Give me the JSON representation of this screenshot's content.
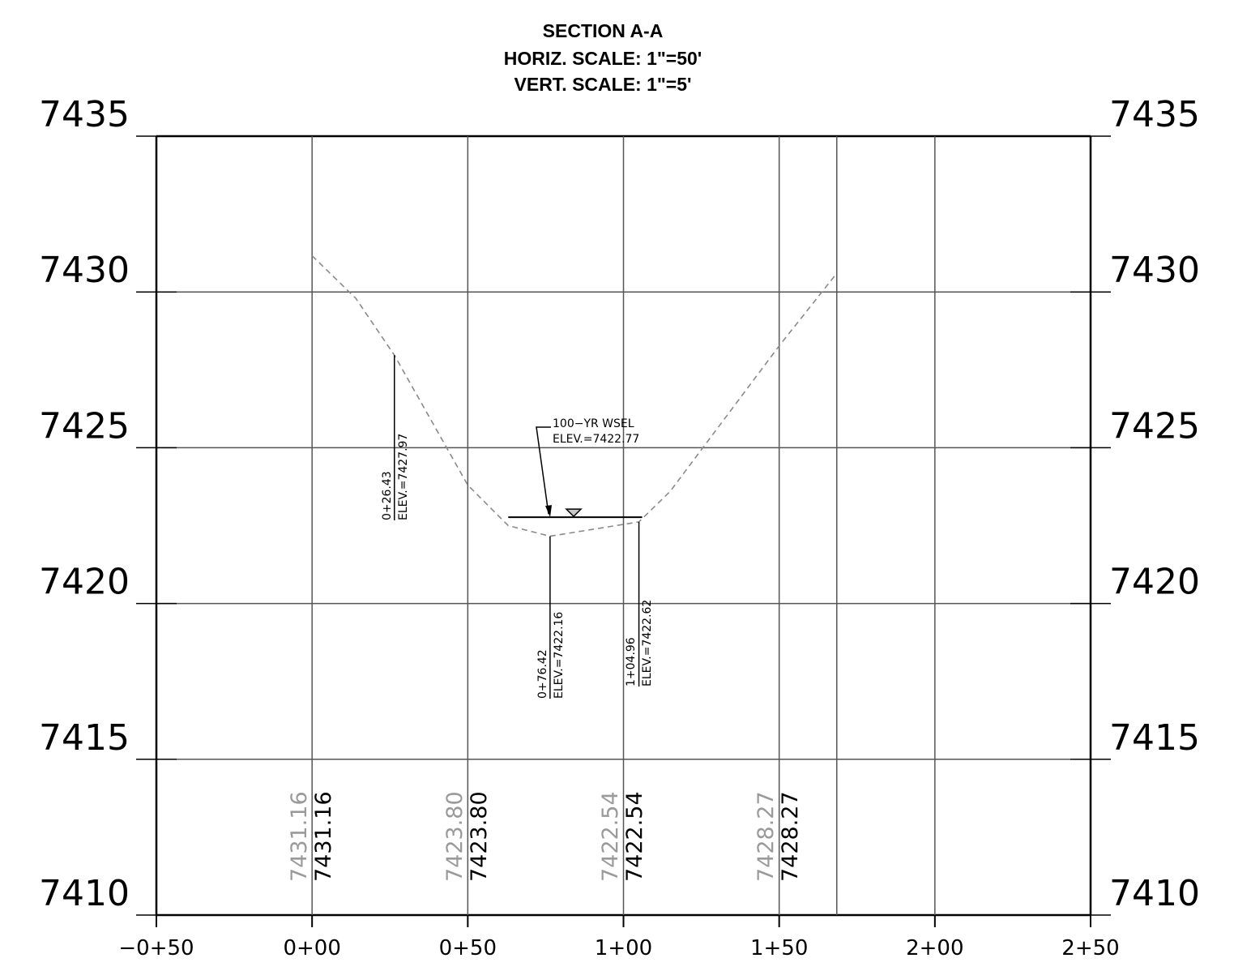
{
  "title": {
    "line1": "SECTION A-A",
    "line2": "HORIZ. SCALE: 1\"=50'",
    "line3": "VERT. SCALE: 1\"=5'"
  },
  "elevation_labels": [
    "7435",
    "7430",
    "7425",
    "7420",
    "7415",
    "7410"
  ],
  "station_labels": [
    "−0+50",
    "0+00",
    "0+50",
    "1+00",
    "1+50",
    "2+00",
    "2+50"
  ],
  "grid_elevations": [
    {
      "station": 0,
      "gray": "7431.16",
      "black": "7431.16"
    },
    {
      "station": 50,
      "gray": "7423.80",
      "black": "7423.80"
    },
    {
      "station": 100,
      "gray": "7422.54",
      "black": "7422.54"
    },
    {
      "station": 150,
      "gray": "7428.27",
      "black": "7428.27"
    }
  ],
  "wsel_callout": {
    "line1": "100−YR  WSEL",
    "line2": "ELEV.=7422.77"
  },
  "point_labels": [
    {
      "station_text": "0+26.43",
      "elev_text": "ELEV.=7427.97"
    },
    {
      "station_text": "0+76.42",
      "elev_text": "ELEV.=7422.16"
    },
    {
      "station_text": "1+04.96",
      "elev_text": "ELEV.=7422.62"
    }
  ],
  "colors": {
    "ground_line": "#8a8a8a",
    "grid": "#555555",
    "gray_text": "#9a9a9a"
  },
  "chart_data": {
    "type": "line",
    "title": "SECTION A-A",
    "x_axis": {
      "range": [
        -50,
        250
      ],
      "ticks": [
        -50,
        0,
        50,
        100,
        150,
        200,
        250
      ]
    },
    "y_axis": {
      "range": [
        7410,
        7435
      ],
      "ticks": [
        7410,
        7415,
        7420,
        7425,
        7430,
        7435
      ]
    },
    "series": [
      {
        "values_xy": [
          [
            0,
            7431.16
          ],
          [
            14,
            7429.8
          ],
          [
            26.43,
            7427.97
          ],
          [
            50,
            7423.8
          ],
          [
            63,
            7422.5
          ],
          [
            76.42,
            7422.16
          ],
          [
            100,
            7422.54
          ],
          [
            104.96,
            7422.62
          ],
          [
            115,
            7423.6
          ],
          [
            150,
            7428.27
          ],
          [
            168.5,
            7430.6
          ]
        ]
      }
    ],
    "water_surface": {
      "elevation": 7422.77,
      "x_range": [
        63,
        106
      ]
    },
    "grid": true
  }
}
